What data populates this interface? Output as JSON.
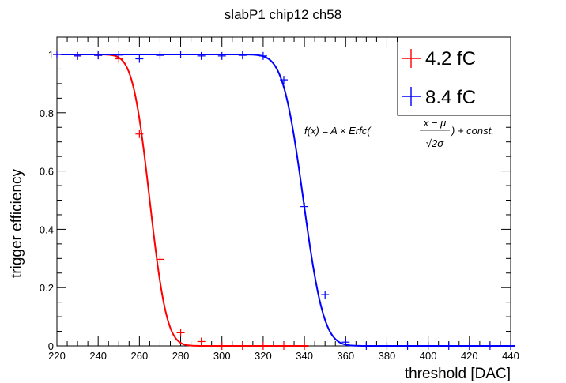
{
  "chart_data": {
    "type": "scatter",
    "title": "slabP1 chip12 ch58",
    "xlabel": "threshold [DAC]",
    "ylabel": "trigger efficiency",
    "xlim": [
      220,
      440
    ],
    "ylim": [
      0,
      1.05
    ],
    "x_ticks": [
      "220",
      "240",
      "260",
      "280",
      "300",
      "320",
      "340",
      "360",
      "380",
      "400",
      "420",
      "440"
    ],
    "y_ticks": [
      "0",
      "0.2",
      "0.4",
      "0.6",
      "0.8",
      "1"
    ],
    "annotation": "f(x) = A × Erfc((x − μ)/(√2σ)) + const.",
    "annotation_parts": {
      "lhs": "f(x) = A × Erfc(",
      "num": "x − μ",
      "den": "√2σ",
      "rhs": ") + const."
    },
    "legend_position": "top-right",
    "series": [
      {
        "name": "4.2 fC",
        "color": "#ff0000",
        "x": [
          220,
          230,
          240,
          250,
          260,
          270,
          280,
          290,
          300,
          310,
          320,
          330,
          340
        ],
        "y": [
          1.0,
          0.995,
          0.997,
          0.985,
          0.727,
          0.297,
          0.045,
          0.015,
          0.0,
          0.0,
          0.0,
          0.0,
          0.0
        ],
        "fit": {
          "A": 0.5,
          "mu": 265.0,
          "sigma": 6.5,
          "const": 0.0,
          "range": [
            222,
            342
          ]
        }
      },
      {
        "name": "8.4 fC",
        "color": "#0000ff",
        "x": [
          220,
          230,
          240,
          250,
          260,
          270,
          280,
          290,
          300,
          310,
          320,
          330,
          340,
          350,
          360,
          370,
          380,
          390,
          400,
          410,
          420,
          430,
          440
        ],
        "y": [
          1.0,
          0.995,
          0.997,
          0.998,
          0.985,
          0.997,
          1.0,
          0.995,
          0.995,
          0.997,
          0.995,
          0.913,
          0.478,
          0.176,
          0.013,
          0.0,
          0.0,
          0.0,
          0.0,
          0.0,
          0.0,
          0.0,
          0.0
        ],
        "fit": {
          "A": 0.5,
          "mu": 339.5,
          "sigma": 7.8,
          "const": 0.0,
          "range": [
            222,
            442
          ]
        }
      }
    ]
  }
}
